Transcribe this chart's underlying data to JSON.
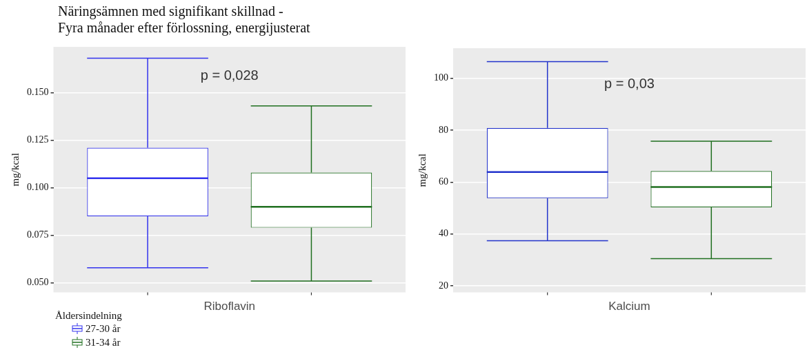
{
  "chart_data": [
    {
      "type": "box",
      "title": "Näringsämnen med signifikant skillnad -\nFyra månader efter förlossning, energijusterat",
      "categories": [
        "Riboflavin"
      ],
      "ylabel": "mg/kcal",
      "ylim": [
        0.045,
        0.174
      ],
      "yticks": [
        {
          "value": 0.05,
          "label": "0.050"
        },
        {
          "value": 0.075,
          "label": "0.075"
        },
        {
          "value": 0.1,
          "label": "0.100"
        },
        {
          "value": 0.125,
          "label": "0.125"
        },
        {
          "value": 0.15,
          "label": "0.150"
        }
      ],
      "grid": true,
      "legend": "bottom left",
      "legend_title": "Åldersindelning",
      "annotations": [
        "p = 0,028"
      ],
      "series": [
        {
          "name": "27-30 år",
          "color": "#3333ee",
          "boxes": [
            {
              "low": 0.058,
              "q1": 0.085,
              "median": 0.105,
              "q3": 0.121,
              "high": 0.168
            }
          ]
        },
        {
          "name": "31-34 år",
          "color": "#1f6f1f",
          "boxes": [
            {
              "low": 0.051,
              "q1": 0.079,
              "median": 0.09,
              "q3": 0.108,
              "high": 0.143
            }
          ]
        }
      ]
    },
    {
      "type": "box",
      "categories": [
        "Kalcium"
      ],
      "ylabel": "mg/kcal",
      "ylim": [
        17.5,
        111.6
      ],
      "yticks": [
        20,
        40,
        60,
        80,
        100
      ],
      "grid": true,
      "annotations": [
        "p = 0,03"
      ],
      "series": [
        {
          "color": "#2233cc",
          "boxes": [
            {
              "low": 37.4,
              "q1": 53.8,
              "median": 63.9,
              "q3": 80.9,
              "high": 106.4
            }
          ]
        },
        {
          "color": "#1f6f1f",
          "boxes": [
            {
              "low": 30.5,
              "q1": 50.3,
              "median": 58.1,
              "q3": 64.3,
              "high": 75.8
            }
          ]
        }
      ]
    }
  ]
}
